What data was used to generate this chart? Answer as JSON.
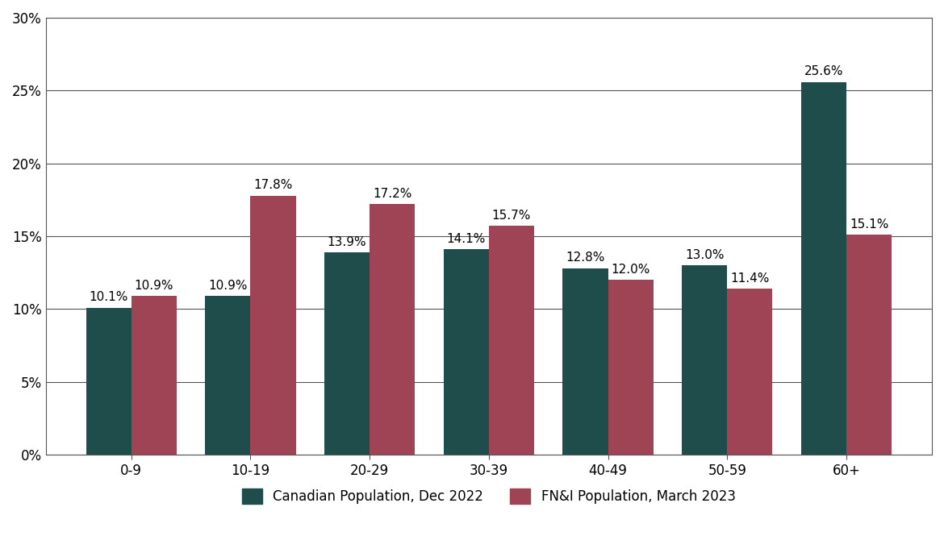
{
  "categories": [
    "0-9",
    "10-19",
    "20-29",
    "30-39",
    "40-49",
    "50-59",
    "60+"
  ],
  "canadian_values": [
    10.1,
    10.9,
    13.9,
    14.1,
    12.8,
    13.0,
    25.6
  ],
  "fni_values": [
    10.9,
    17.8,
    17.2,
    15.7,
    12.0,
    11.4,
    15.1
  ],
  "canadian_color": "#1e4d4b",
  "fni_color": "#9e4455",
  "background_color": "#ffffff",
  "plot_background_color": "#ffffff",
  "canadian_label": "Canadian Population, Dec 2022",
  "fni_label": "FN&I Population, March 2023",
  "ylim": [
    0,
    30
  ],
  "yticks": [
    0,
    5,
    10,
    15,
    20,
    25,
    30
  ],
  "ytick_labels": [
    "0%",
    "5%",
    "10%",
    "15%",
    "20%",
    "25%",
    "30%"
  ],
  "bar_width": 0.38,
  "tick_fontsize": 12,
  "legend_fontsize": 12,
  "annotation_fontsize": 11,
  "grid_color": "#555555",
  "grid_linewidth": 0.8
}
